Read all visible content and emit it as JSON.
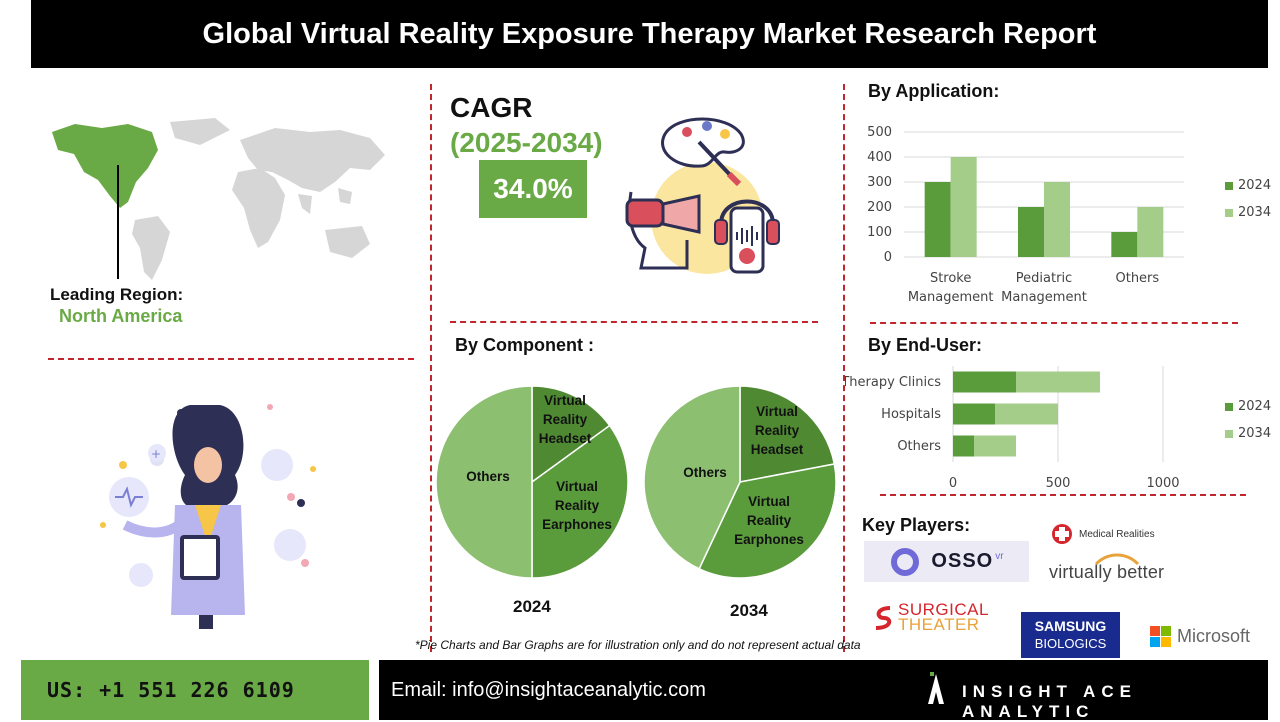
{
  "header": {
    "title": "Global Virtual Reality Exposure Therapy Market Research Report"
  },
  "region": {
    "label": "Leading Region:",
    "value": "North America"
  },
  "cagr": {
    "title": "CAGR",
    "years": "(2025-2034)",
    "value": "34.0%"
  },
  "component": {
    "title": "By Component :"
  },
  "application": {
    "title": "By Application:"
  },
  "end_user": {
    "title": "By End-User:"
  },
  "key_players": {
    "title": "Key Players:",
    "osso": {
      "name": "OSSO",
      "sup": "vr"
    },
    "medical_realities": "Medical Realities",
    "virtually_better": "virtually better",
    "surgical_theater": {
      "line1": "SURGICAL",
      "line2": "THEATER"
    },
    "samsung": {
      "line1": "SAMSUNG",
      "line2": "BIOLOGICS"
    },
    "microsoft": "Microsoft"
  },
  "footnote": "*Pie Charts and Bar Graphs are for illustration only and do not represent actual data",
  "footer": {
    "phone": "US: +1 551 226 6109",
    "email": "Email: info@insightaceanalytic.com",
    "brand": "INSIGHT ACE ANALYTIC"
  },
  "colors": {
    "green": "#6aaa46",
    "dark_green": "#5a9b3c",
    "light_green": "#a5cd8a",
    "pie_light": "#8cbf70",
    "pie_dark": "#4f8a33",
    "red": "#c0262c"
  },
  "chart_data": [
    {
      "type": "bar",
      "categories": [
        "Stroke Management",
        "Pediatric Management",
        "Others"
      ],
      "series": [
        {
          "name": "2024",
          "values": [
            300,
            200,
            100
          ]
        },
        {
          "name": "2034",
          "values": [
            400,
            300,
            200
          ]
        }
      ],
      "ylim": [
        0,
        500
      ],
      "yticks": [
        0,
        100,
        200,
        300,
        400,
        500
      ],
      "grid": true,
      "legend": "right"
    },
    {
      "type": "bar",
      "orientation": "horizontal",
      "categories": [
        "Therapy Clinics",
        "Hospitals",
        "Others"
      ],
      "series": [
        {
          "name": "2024",
          "values": [
            300,
            200,
            100
          ]
        },
        {
          "name": "2034",
          "values": [
            400,
            300,
            200
          ]
        }
      ],
      "stacked": true,
      "xlim": [
        0,
        1000
      ],
      "xticks": [
        0,
        500,
        1000
      ],
      "grid": true,
      "legend": "right"
    },
    {
      "type": "pie",
      "label": "2024",
      "slices": [
        {
          "name": "Virtual Reality Headset",
          "value": 15
        },
        {
          "name": "Virtual Reality Earphones",
          "value": 35
        },
        {
          "name": "Others",
          "value": 50
        }
      ]
    },
    {
      "type": "pie",
      "label": "2034",
      "slices": [
        {
          "name": "Virtual Reality Headset",
          "value": 22
        },
        {
          "name": "Virtual Reality Earphones",
          "value": 35
        },
        {
          "name": "Others",
          "value": 43
        }
      ]
    }
  ]
}
